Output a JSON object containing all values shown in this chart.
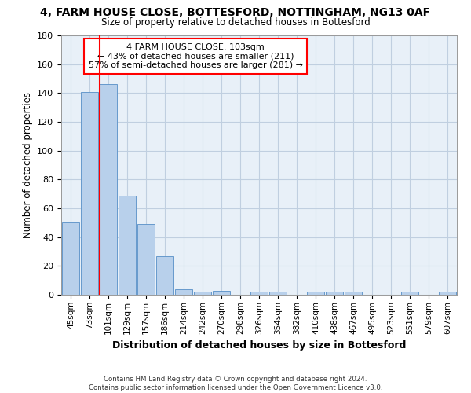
{
  "title": "4, FARM HOUSE CLOSE, BOTTESFORD, NOTTINGHAM, NG13 0AF",
  "subtitle": "Size of property relative to detached houses in Bottesford",
  "xlabel": "Distribution of detached houses by size in Bottesford",
  "ylabel": "Number of detached properties",
  "bar_labels": [
    "45sqm",
    "73sqm",
    "101sqm",
    "129sqm",
    "157sqm",
    "186sqm",
    "214sqm",
    "242sqm",
    "270sqm",
    "298sqm",
    "326sqm",
    "354sqm",
    "382sqm",
    "410sqm",
    "438sqm",
    "467sqm",
    "495sqm",
    "523sqm",
    "551sqm",
    "579sqm",
    "607sqm"
  ],
  "bar_values": [
    50,
    141,
    146,
    69,
    49,
    27,
    4,
    2,
    3,
    0,
    2,
    2,
    0,
    2,
    2,
    2,
    0,
    0,
    2,
    0,
    2
  ],
  "bar_color": "#b8d0eb",
  "bar_edge_color": "#6699cc",
  "red_line_label": "4 FARM HOUSE CLOSE: 103sqm",
  "annotation_line1": "← 43% of detached houses are smaller (211)",
  "annotation_line2": "57% of semi-detached houses are larger (281) →",
  "ylim": [
    0,
    180
  ],
  "yticks": [
    0,
    20,
    40,
    60,
    80,
    100,
    120,
    140,
    160,
    180
  ],
  "footer_line1": "Contains HM Land Registry data © Crown copyright and database right 2024.",
  "footer_line2": "Contains public sector information licensed under the Open Government Licence v3.0.",
  "bg_color": "#e8f0f8",
  "grid_color": "#c0cfe0"
}
